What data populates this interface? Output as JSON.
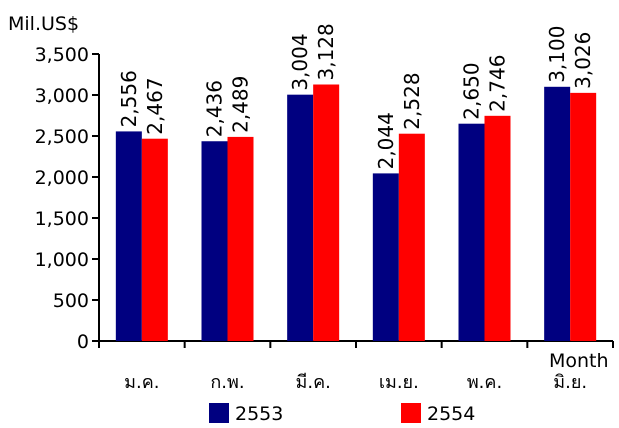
{
  "chart_data": {
    "type": "bar",
    "ylabel": "Mil.US$",
    "xlabel": "Month",
    "ylim": [
      0,
      3500
    ],
    "yticks": [
      0,
      500,
      1000,
      1500,
      2000,
      2500,
      3000,
      3500
    ],
    "ytick_labels": [
      "0",
      "500",
      "1,000",
      "1,500",
      "2,000",
      "2,500",
      "3,000",
      "3,500"
    ],
    "categories": [
      "ม.ค.",
      "ก.พ.",
      "มี.ค.",
      "เม.ย.",
      "พ.ค.",
      "มิ.ย."
    ],
    "series": [
      {
        "name": "2553",
        "color": "#000080",
        "values": [
          2556,
          2436,
          3004,
          2044,
          2650,
          3100
        ],
        "labels": [
          "2,556",
          "2,436",
          "3,004",
          "2,044",
          "2,650",
          "3,100"
        ]
      },
      {
        "name": "2554",
        "color": "#ff0000",
        "values": [
          2467,
          2489,
          3128,
          2528,
          2746,
          3026
        ],
        "labels": [
          "2,467",
          "2,489",
          "3,128",
          "2,528",
          "2,746",
          "3,026"
        ]
      }
    ],
    "grid": false,
    "legend_position": "bottom"
  }
}
